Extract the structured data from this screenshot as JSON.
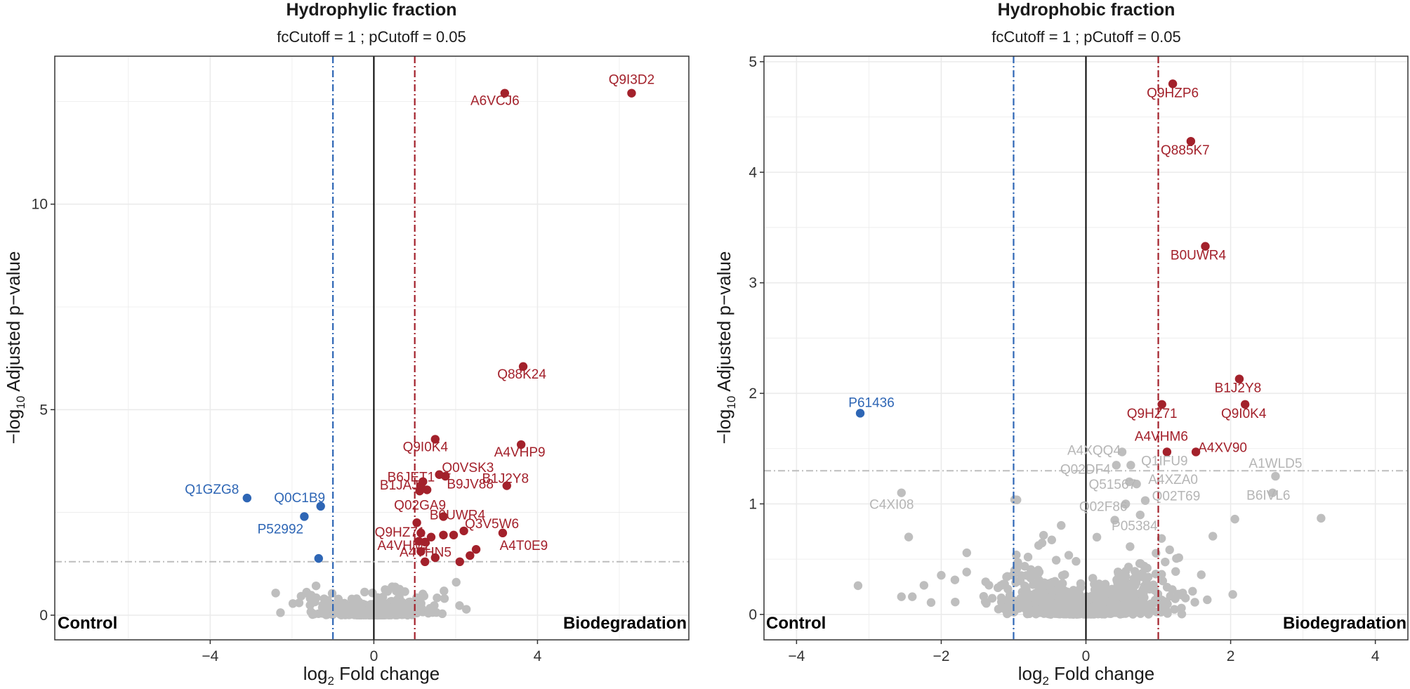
{
  "chart_data": [
    {
      "type": "scatter",
      "title": "Hydrophylic fraction",
      "subtitle": "fcCutoff = 1 ; pCutoff = 0.05",
      "xlabel": "Fold change",
      "xlabel_prefix": "log",
      "xlabel_sub": "2",
      "ylabel": "Adjusted p−value",
      "ylabel_prefix": "−log",
      "ylabel_sub": "10",
      "xlim": [
        -7.8,
        7.7
      ],
      "ylim": [
        -0.6,
        13.6
      ],
      "xticks": [
        -4,
        0,
        4
      ],
      "xtick_labels": [
        "−4",
        "0",
        "4"
      ],
      "yticks": [
        0,
        5,
        10
      ],
      "ytick_labels": [
        "0",
        "5",
        "10"
      ],
      "fc_cutoff": 1,
      "p_cutoff_line": 1.3,
      "left_corner_label": "Control",
      "right_corner_label": "Biodegradation",
      "colors": {
        "up": "#A3212B",
        "down": "#2E66B5",
        "ns": "#BEBEBE"
      },
      "significant_points": [
        {
          "label": "Q9I3D2",
          "x": 6.3,
          "y": 12.7,
          "group": "up"
        },
        {
          "label": "A6VCJ6",
          "x": 3.2,
          "y": 12.7,
          "group": "up"
        },
        {
          "label": "Q88K24",
          "x": 3.65,
          "y": 6.05,
          "group": "up"
        },
        {
          "label": "A4VHP9",
          "x": 3.6,
          "y": 4.15,
          "group": "up"
        },
        {
          "label": "Q9I0K4",
          "x": 1.5,
          "y": 4.28,
          "group": "up"
        },
        {
          "label": "B6JET1",
          "x": 1.15,
          "y": 3.15,
          "group": "up"
        },
        {
          "label": "Q0VSK3",
          "x": 1.75,
          "y": 3.38,
          "group": "up"
        },
        {
          "label": "B1JAJ8",
          "x": 1.12,
          "y": 3.02,
          "group": "up"
        },
        {
          "label": "B1J2Y8",
          "x": 3.25,
          "y": 3.15,
          "group": "up"
        },
        {
          "label": "B9JV88",
          "x": 1.6,
          "y": 3.42,
          "group": "up"
        },
        {
          "label": "Q02GA9",
          "x": 1.3,
          "y": 3.05,
          "group": "up"
        },
        {
          "label": "B0UWR4",
          "x": 1.7,
          "y": 2.4,
          "group": "up"
        },
        {
          "label": "Q9HZ71",
          "x": 1.05,
          "y": 2.25,
          "group": "up"
        },
        {
          "label": "Q3V5W6",
          "x": 2.2,
          "y": 2.05,
          "group": "up"
        },
        {
          "label": "A4VHM2",
          "x": 1.15,
          "y": 2.0,
          "group": "up"
        },
        {
          "label": "A4VHN5",
          "x": 1.4,
          "y": 1.9,
          "group": "up"
        },
        {
          "label": "A4T0E9",
          "x": 3.15,
          "y": 2.0,
          "group": "up"
        },
        {
          "label": "Q1GZG8",
          "x": -3.1,
          "y": 2.85,
          "group": "down"
        },
        {
          "label": "Q0C1B9",
          "x": -1.3,
          "y": 2.65,
          "group": "down"
        },
        {
          "label": "P52992",
          "x": -1.7,
          "y": 2.4,
          "group": "down"
        }
      ],
      "extra_points": [
        {
          "x": -1.35,
          "y": 1.38,
          "group": "down"
        },
        {
          "x": 1.2,
          "y": 3.25,
          "group": "up"
        },
        {
          "x": 1.25,
          "y": 1.78,
          "group": "up"
        },
        {
          "x": 1.15,
          "y": 1.55,
          "group": "up"
        },
        {
          "x": 1.5,
          "y": 1.4,
          "group": "up"
        },
        {
          "x": 1.25,
          "y": 1.3,
          "group": "up"
        },
        {
          "x": 1.7,
          "y": 1.95,
          "group": "up"
        },
        {
          "x": 1.95,
          "y": 1.95,
          "group": "up"
        },
        {
          "x": 2.1,
          "y": 1.3,
          "group": "up"
        },
        {
          "x": 2.35,
          "y": 1.45,
          "group": "up"
        },
        {
          "x": 2.5,
          "y": 1.6,
          "group": "up"
        },
        {
          "x": 1.1,
          "y": 1.8,
          "group": "up"
        }
      ]
    },
    {
      "type": "scatter",
      "title": "Hydrophobic fraction",
      "subtitle": "fcCutoff = 1 ; pCutoff = 0.05",
      "xlabel": "Fold change",
      "xlabel_prefix": "log",
      "xlabel_sub": "2",
      "ylabel": "Adjusted p−value",
      "ylabel_prefix": "−log",
      "ylabel_sub": "10",
      "xlim": [
        -4.45,
        4.45
      ],
      "ylim": [
        -0.23,
        5.05
      ],
      "xticks": [
        -4,
        -2,
        0,
        2,
        4
      ],
      "xtick_labels": [
        "−4",
        "−2",
        "0",
        "2",
        "4"
      ],
      "yticks": [
        0,
        1,
        2,
        3,
        4,
        5
      ],
      "ytick_labels": [
        "0",
        "1",
        "2",
        "3",
        "4",
        "5"
      ],
      "fc_cutoff": 1,
      "p_cutoff_line": 1.3,
      "left_corner_label": "Control",
      "right_corner_label": "Biodegradation",
      "colors": {
        "up": "#A3212B",
        "down": "#2E66B5",
        "ns": "#BEBEBE"
      },
      "significant_points": [
        {
          "label": "Q9HZP6",
          "x": 1.2,
          "y": 4.8,
          "group": "up"
        },
        {
          "label": "Q885K7",
          "x": 1.45,
          "y": 4.28,
          "group": "up"
        },
        {
          "label": "B0UWR4",
          "x": 1.65,
          "y": 3.33,
          "group": "up"
        },
        {
          "label": "B1J2Y8",
          "x": 2.12,
          "y": 2.13,
          "group": "up"
        },
        {
          "label": "Q9HZ71",
          "x": 1.05,
          "y": 1.9,
          "group": "up"
        },
        {
          "label": "Q9I0K4",
          "x": 2.2,
          "y": 1.9,
          "group": "up"
        },
        {
          "label": "A4VHM6",
          "x": 1.12,
          "y": 1.47,
          "group": "up"
        },
        {
          "label": "A4XV90",
          "x": 1.52,
          "y": 1.47,
          "group": "up"
        },
        {
          "label": "P61436",
          "x": -3.12,
          "y": 1.82,
          "group": "down"
        },
        {
          "label": "A4XQQ4",
          "x": 0.5,
          "y": 1.47,
          "group": "ns"
        },
        {
          "label": "Q02DF4",
          "x": 0.42,
          "y": 1.35,
          "group": "ns"
        },
        {
          "label": "Q1IFU9",
          "x": 0.62,
          "y": 1.35,
          "group": "ns"
        },
        {
          "label": "A1WLD5",
          "x": 2.62,
          "y": 1.25,
          "group": "ns"
        },
        {
          "label": "Q51567",
          "x": 0.6,
          "y": 1.2,
          "group": "ns"
        },
        {
          "label": "A4XZA0",
          "x": 0.7,
          "y": 1.18,
          "group": "ns"
        },
        {
          "label": "B6IVL6",
          "x": 2.58,
          "y": 1.1,
          "group": "ns"
        },
        {
          "label": "C4XI08",
          "x": -2.55,
          "y": 1.1,
          "group": "ns"
        },
        {
          "label": "Q02F86",
          "x": 0.55,
          "y": 1.0,
          "group": "ns"
        },
        {
          "label": "Q02T69",
          "x": 0.82,
          "y": 1.03,
          "group": "ns"
        },
        {
          "label": "P05384",
          "x": 0.75,
          "y": 0.9,
          "group": "ns"
        }
      ],
      "extra_points": [
        {
          "x": 3.25,
          "y": 0.87,
          "group": "ns"
        },
        {
          "x": -2.45,
          "y": 0.7,
          "group": "ns"
        },
        {
          "x": -3.15,
          "y": 0.26,
          "group": "ns"
        },
        {
          "x": -2.55,
          "y": 0.16,
          "group": "ns"
        },
        {
          "x": -2.4,
          "y": 0.16,
          "group": "ns"
        }
      ]
    }
  ]
}
